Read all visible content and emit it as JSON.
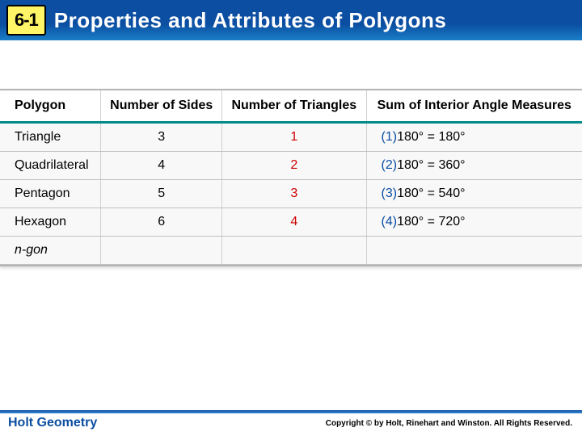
{
  "header": {
    "lesson_number": "6-1",
    "title": "Properties and Attributes of Polygons"
  },
  "table": {
    "columns": [
      "Polygon",
      "Number of Sides",
      "Number of Triangles",
      "Sum of Interior Angle Measures"
    ],
    "rows": [
      {
        "polygon": "Triangle",
        "sides": "3",
        "triangles": "1",
        "sum_prefix": "(1)",
        "sum_eq": "180° = 180°"
      },
      {
        "polygon": "Quadrilateral",
        "sides": "4",
        "triangles": "2",
        "sum_prefix": "(2)",
        "sum_eq": "180° = 360°"
      },
      {
        "polygon": "Pentagon",
        "sides": "5",
        "triangles": "3",
        "sum_prefix": "(3)",
        "sum_eq": "180° = 540°"
      },
      {
        "polygon": "Hexagon",
        "sides": "6",
        "triangles": "4",
        "sum_prefix": "(4)",
        "sum_eq": "180° = 720°"
      },
      {
        "polygon": "n-gon",
        "sides": "",
        "triangles": "",
        "sum_prefix": "",
        "sum_eq": ""
      }
    ],
    "colors": {
      "header_rule": "#008a8a",
      "triangle_count": "#cc0000",
      "sum_prefix": "#0b4ea2",
      "text": "#000000",
      "row_border": "#c0c0c0"
    }
  },
  "footer": {
    "left": "Holt Geometry",
    "right": "Copyright © by Holt, Rinehart and Winston. All Rights Reserved."
  }
}
